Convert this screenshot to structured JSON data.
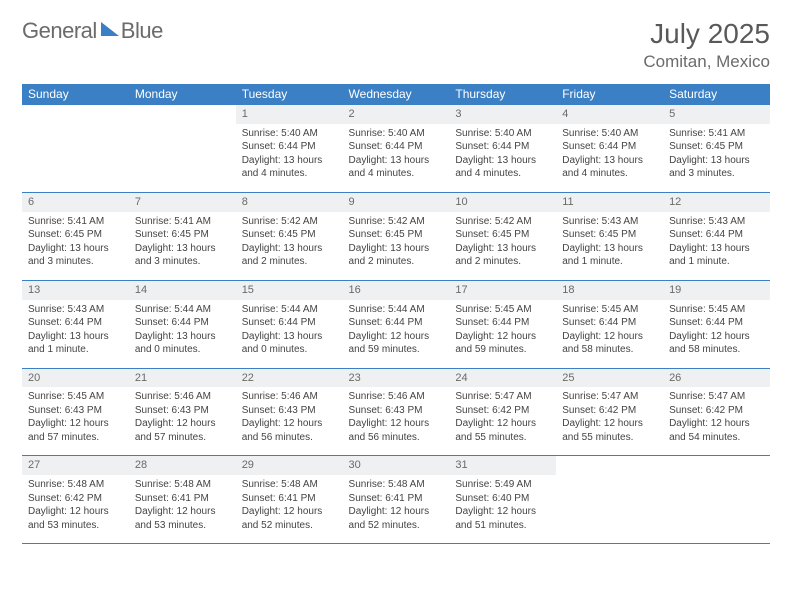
{
  "brand": {
    "word1": "General",
    "word2": "Blue"
  },
  "title": "July 2025",
  "location": "Comitan, Mexico",
  "day_headers": [
    "Sunday",
    "Monday",
    "Tuesday",
    "Wednesday",
    "Thursday",
    "Friday",
    "Saturday"
  ],
  "colors": {
    "header_bg": "#3b7fc4",
    "header_text": "#ffffff",
    "daynum_bg": "#eef0f2",
    "body_text": "#444444",
    "border": "#3b7fc4"
  },
  "weeks": [
    [
      null,
      null,
      {
        "n": "1",
        "sunrise": "5:40 AM",
        "sunset": "6:44 PM",
        "daylight": "13 hours and 4 minutes."
      },
      {
        "n": "2",
        "sunrise": "5:40 AM",
        "sunset": "6:44 PM",
        "daylight": "13 hours and 4 minutes."
      },
      {
        "n": "3",
        "sunrise": "5:40 AM",
        "sunset": "6:44 PM",
        "daylight": "13 hours and 4 minutes."
      },
      {
        "n": "4",
        "sunrise": "5:40 AM",
        "sunset": "6:44 PM",
        "daylight": "13 hours and 4 minutes."
      },
      {
        "n": "5",
        "sunrise": "5:41 AM",
        "sunset": "6:45 PM",
        "daylight": "13 hours and 3 minutes."
      }
    ],
    [
      {
        "n": "6",
        "sunrise": "5:41 AM",
        "sunset": "6:45 PM",
        "daylight": "13 hours and 3 minutes."
      },
      {
        "n": "7",
        "sunrise": "5:41 AM",
        "sunset": "6:45 PM",
        "daylight": "13 hours and 3 minutes."
      },
      {
        "n": "8",
        "sunrise": "5:42 AM",
        "sunset": "6:45 PM",
        "daylight": "13 hours and 2 minutes."
      },
      {
        "n": "9",
        "sunrise": "5:42 AM",
        "sunset": "6:45 PM",
        "daylight": "13 hours and 2 minutes."
      },
      {
        "n": "10",
        "sunrise": "5:42 AM",
        "sunset": "6:45 PM",
        "daylight": "13 hours and 2 minutes."
      },
      {
        "n": "11",
        "sunrise": "5:43 AM",
        "sunset": "6:45 PM",
        "daylight": "13 hours and 1 minute."
      },
      {
        "n": "12",
        "sunrise": "5:43 AM",
        "sunset": "6:44 PM",
        "daylight": "13 hours and 1 minute."
      }
    ],
    [
      {
        "n": "13",
        "sunrise": "5:43 AM",
        "sunset": "6:44 PM",
        "daylight": "13 hours and 1 minute."
      },
      {
        "n": "14",
        "sunrise": "5:44 AM",
        "sunset": "6:44 PM",
        "daylight": "13 hours and 0 minutes."
      },
      {
        "n": "15",
        "sunrise": "5:44 AM",
        "sunset": "6:44 PM",
        "daylight": "13 hours and 0 minutes."
      },
      {
        "n": "16",
        "sunrise": "5:44 AM",
        "sunset": "6:44 PM",
        "daylight": "12 hours and 59 minutes."
      },
      {
        "n": "17",
        "sunrise": "5:45 AM",
        "sunset": "6:44 PM",
        "daylight": "12 hours and 59 minutes."
      },
      {
        "n": "18",
        "sunrise": "5:45 AM",
        "sunset": "6:44 PM",
        "daylight": "12 hours and 58 minutes."
      },
      {
        "n": "19",
        "sunrise": "5:45 AM",
        "sunset": "6:44 PM",
        "daylight": "12 hours and 58 minutes."
      }
    ],
    [
      {
        "n": "20",
        "sunrise": "5:45 AM",
        "sunset": "6:43 PM",
        "daylight": "12 hours and 57 minutes."
      },
      {
        "n": "21",
        "sunrise": "5:46 AM",
        "sunset": "6:43 PM",
        "daylight": "12 hours and 57 minutes."
      },
      {
        "n": "22",
        "sunrise": "5:46 AM",
        "sunset": "6:43 PM",
        "daylight": "12 hours and 56 minutes."
      },
      {
        "n": "23",
        "sunrise": "5:46 AM",
        "sunset": "6:43 PM",
        "daylight": "12 hours and 56 minutes."
      },
      {
        "n": "24",
        "sunrise": "5:47 AM",
        "sunset": "6:42 PM",
        "daylight": "12 hours and 55 minutes."
      },
      {
        "n": "25",
        "sunrise": "5:47 AM",
        "sunset": "6:42 PM",
        "daylight": "12 hours and 55 minutes."
      },
      {
        "n": "26",
        "sunrise": "5:47 AM",
        "sunset": "6:42 PM",
        "daylight": "12 hours and 54 minutes."
      }
    ],
    [
      {
        "n": "27",
        "sunrise": "5:48 AM",
        "sunset": "6:42 PM",
        "daylight": "12 hours and 53 minutes."
      },
      {
        "n": "28",
        "sunrise": "5:48 AM",
        "sunset": "6:41 PM",
        "daylight": "12 hours and 53 minutes."
      },
      {
        "n": "29",
        "sunrise": "5:48 AM",
        "sunset": "6:41 PM",
        "daylight": "12 hours and 52 minutes."
      },
      {
        "n": "30",
        "sunrise": "5:48 AM",
        "sunset": "6:41 PM",
        "daylight": "12 hours and 52 minutes."
      },
      {
        "n": "31",
        "sunrise": "5:49 AM",
        "sunset": "6:40 PM",
        "daylight": "12 hours and 51 minutes."
      },
      null,
      null
    ]
  ]
}
